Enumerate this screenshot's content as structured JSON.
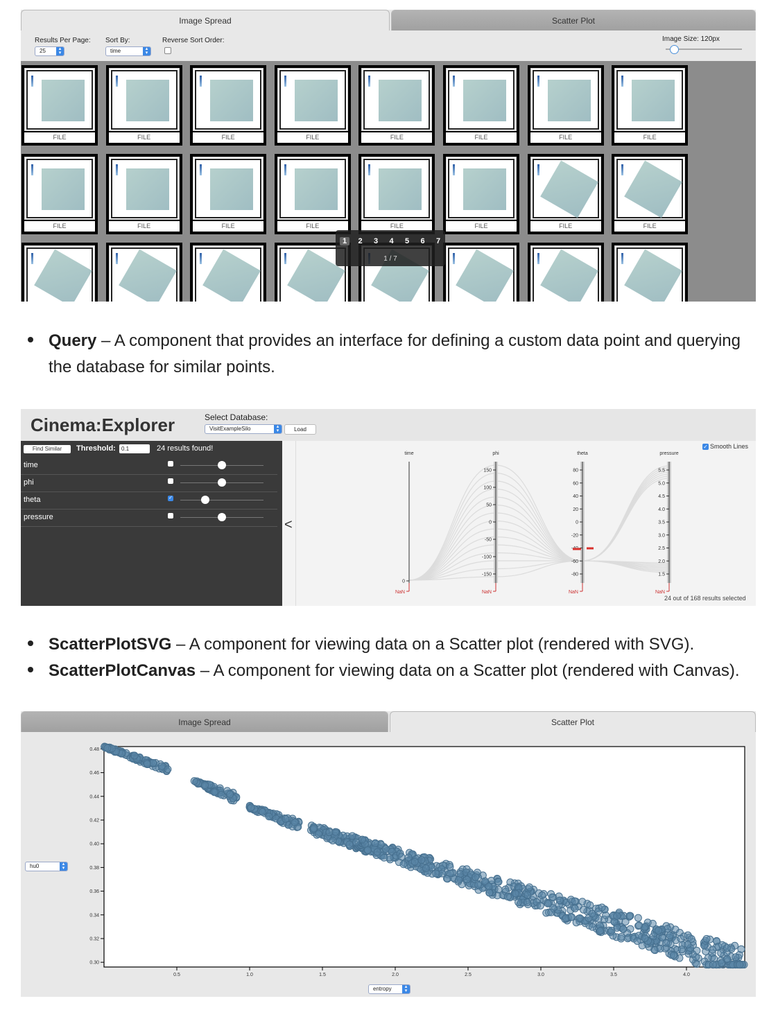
{
  "top_panel": {
    "tabs": [
      {
        "label": "Image Spread"
      },
      {
        "label": "Scatter Plot"
      }
    ],
    "controls": {
      "results_per_page_label": "Results Per Page:",
      "results_per_page_value": "25",
      "sort_by_label": "Sort By:",
      "sort_by_value": "time",
      "reverse_sort_label": "Reverse Sort Order:",
      "image_size_label": "Image Size: 120px"
    },
    "thumb_caption": "FILE",
    "pager": {
      "pages": [
        "1",
        "2",
        "3",
        "4",
        "5",
        "6",
        "7"
      ],
      "status": "1 / 7"
    }
  },
  "bullets": {
    "query_title": "Query",
    "query_text": " – A component that provides an interface for defining a custom data point and querying",
    "query_text2": "the database for similar points.",
    "svg_title": "ScatterPlotSVG",
    "svg_text": " – A component for viewing data on a Scatter plot (rendered with SVG).",
    "canvas_title": "ScatterPlotCanvas",
    "canvas_text": " – A component for viewing data on a Scatter plot (rendered with Canvas)."
  },
  "explorer": {
    "title": "Cinema:Explorer",
    "select_db_label": "Select Database:",
    "db_value": "VisitExampleSilo",
    "load_label": "Load",
    "find_similar_label": "Find Similar",
    "threshold_label": "Threshold:",
    "threshold_value": "0.1",
    "results_found": "24 results found!",
    "collapse_label": "<",
    "smooth_lines_label": "Smooth Lines",
    "selection_status": "24 out of 168 results selected",
    "params": [
      {
        "name": "time",
        "checked": false,
        "slider": 0.5
      },
      {
        "name": "phi",
        "checked": false,
        "slider": 0.5
      },
      {
        "name": "theta",
        "checked": true,
        "slider": 0.3
      },
      {
        "name": "pressure",
        "checked": false,
        "slider": 0.5
      }
    ],
    "axes": [
      {
        "name": "time",
        "ticks": [
          "0"
        ],
        "nan": "NaN"
      },
      {
        "name": "phi",
        "ticks": [
          "150",
          "100",
          "50",
          "0",
          "-50",
          "-100",
          "-150"
        ],
        "nan": "NaN"
      },
      {
        "name": "theta",
        "ticks": [
          "80",
          "60",
          "40",
          "20",
          "0",
          "-20",
          "-40",
          "-60",
          "-80"
        ],
        "nan": "NaN"
      },
      {
        "name": "pressure",
        "ticks": [
          "5.5",
          "5.0",
          "4.5",
          "4.0",
          "3.5",
          "3.0",
          "2.5",
          "2.0",
          "1.5"
        ],
        "nan": "NaN"
      }
    ]
  },
  "scatter_panel": {
    "tabs": [
      {
        "label": "Image Spread"
      },
      {
        "label": "Scatter Plot"
      }
    ],
    "y_select": "hu0",
    "x_select": "entropy",
    "point_color": "#5b86a8"
  },
  "chart_data": {
    "type": "scatter",
    "xlabel": "entropy",
    "ylabel": "hu0",
    "xlim": [
      0,
      4.4
    ],
    "ylim": [
      0.296,
      0.482
    ],
    "x_ticks": [
      "0.5",
      "1.0",
      "1.5",
      "2.0",
      "2.5",
      "3.0",
      "3.5",
      "4.0"
    ],
    "y_ticks": [
      "0.48",
      "0.46",
      "0.44",
      "0.42",
      "0.40",
      "0.38",
      "0.36",
      "0.34",
      "0.32",
      "0.30"
    ],
    "clusters": [
      {
        "x_range": [
          0.0,
          0.45
        ],
        "y_start": 0.482,
        "y_end": 0.462,
        "spread": 0.002
      },
      {
        "x_range": [
          0.62,
          0.92
        ],
        "y_start": 0.453,
        "y_end": 0.438,
        "spread": 0.003
      },
      {
        "x_range": [
          1.0,
          1.35
        ],
        "y_start": 0.431,
        "y_end": 0.415,
        "spread": 0.003
      },
      {
        "x_range": [
          1.42,
          4.4
        ],
        "y_start": 0.413,
        "y_end": 0.298,
        "spread": 0.01
      }
    ]
  }
}
